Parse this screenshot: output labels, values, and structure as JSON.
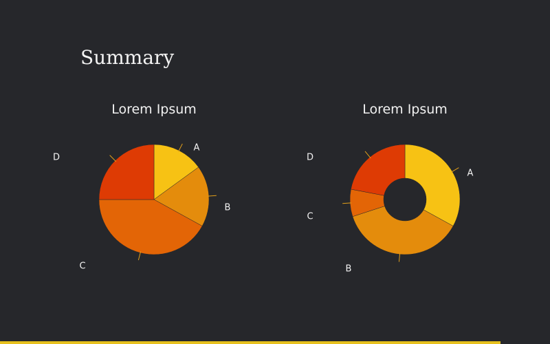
{
  "page": {
    "title": "Summary"
  },
  "colors": {
    "background": "#26272b",
    "accent_bar": "#e6c01d",
    "leader": "#e3a01a",
    "text": "#f2f2f2"
  },
  "chart_data": [
    {
      "type": "pie",
      "title": "Lorem Ipsum",
      "labels": [
        "A",
        "B",
        "C",
        "D"
      ],
      "values": [
        15,
        18,
        42,
        25
      ],
      "colors": [
        "#f7c214",
        "#e48c0c",
        "#e36506",
        "#de3b04"
      ]
    },
    {
      "type": "pie",
      "variant": "donut",
      "title": "Lorem Ipsum",
      "labels": [
        "A",
        "B",
        "C",
        "D"
      ],
      "values": [
        33,
        37,
        8,
        22
      ],
      "colors": [
        "#f7c214",
        "#e48c0c",
        "#e36506",
        "#de3b04"
      ]
    }
  ]
}
